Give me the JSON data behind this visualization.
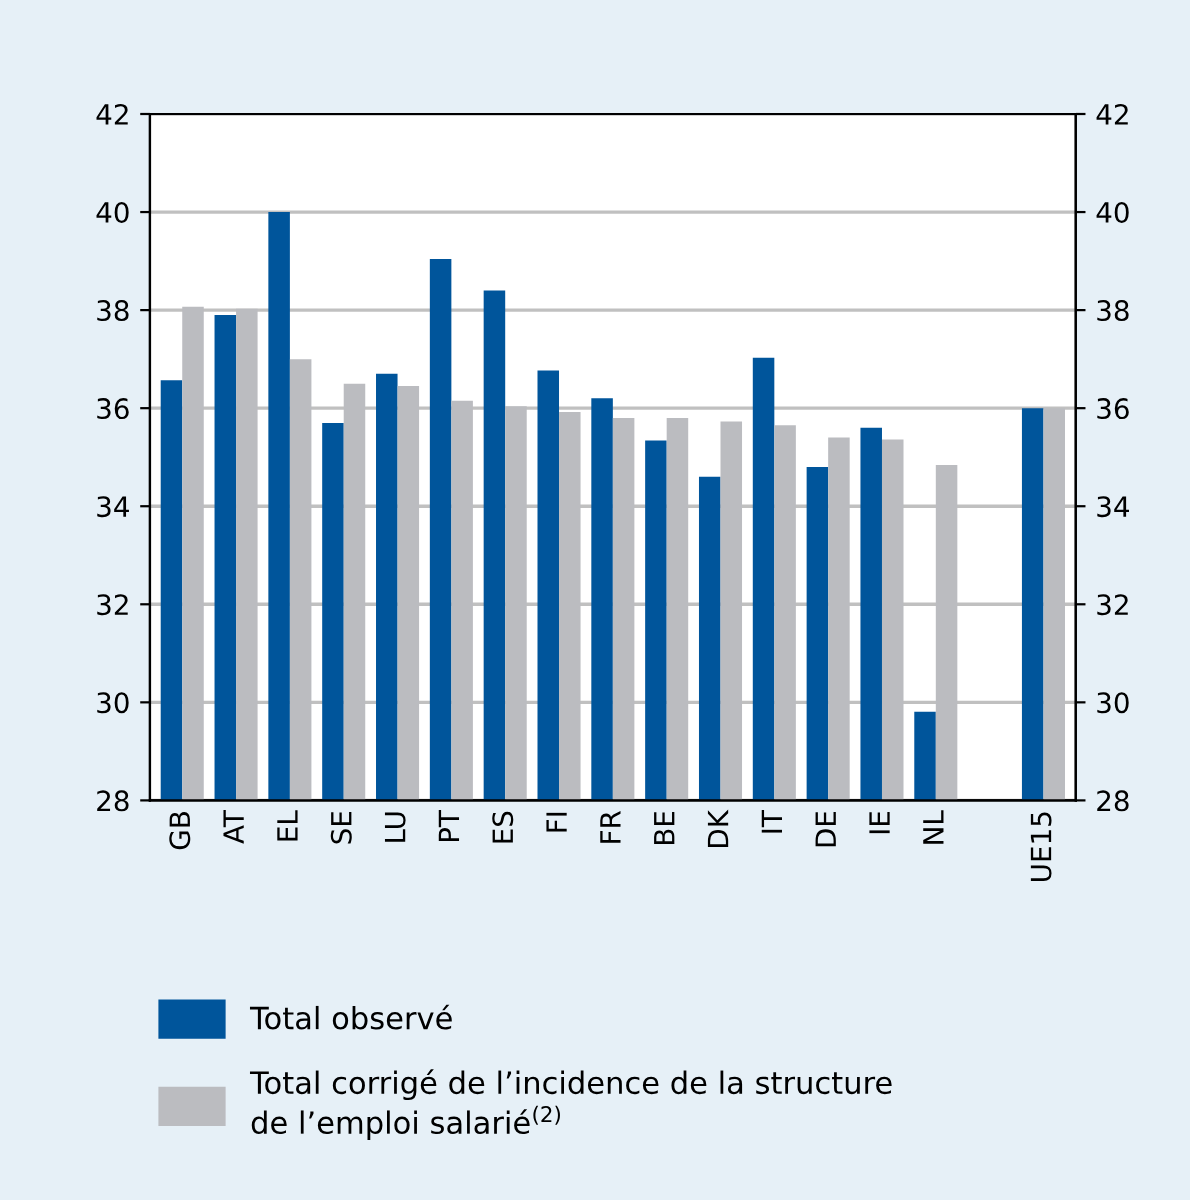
{
  "chart_data": {
    "type": "bar",
    "categories": [
      "GB",
      "AT",
      "EL",
      "SE",
      "LU",
      "PT",
      "ES",
      "FI",
      "FR",
      "BE",
      "DK",
      "IT",
      "DE",
      "IE",
      "NL",
      null,
      "UE15"
    ],
    "series": [
      {
        "name": "Total observé",
        "color": "#00559b",
        "values": [
          36.57,
          37.9,
          40.0,
          35.7,
          36.7,
          39.04,
          38.4,
          36.77,
          36.2,
          35.34,
          34.6,
          37.03,
          34.8,
          35.6,
          29.81,
          null,
          36.0
        ]
      },
      {
        "name": "Total corrigé de l’incidence de la structure\nde l’emploi salarié$^{(2)}$",
        "color": "#bbbcc0",
        "values": [
          38.07,
          38.03,
          37.0,
          36.5,
          36.45,
          36.15,
          36.04,
          35.92,
          35.8,
          35.8,
          35.73,
          35.65,
          35.4,
          35.36,
          34.84,
          null,
          36.0
        ]
      }
    ],
    "ylim": [
      28,
      42
    ],
    "yticks": [
      28,
      30,
      32,
      34,
      36,
      38,
      40,
      42
    ],
    "y2lim": [
      28,
      42
    ],
    "y2ticks": [
      28,
      30,
      32,
      34,
      36,
      38,
      40,
      42
    ],
    "grid": "y",
    "legend": "bottom"
  }
}
